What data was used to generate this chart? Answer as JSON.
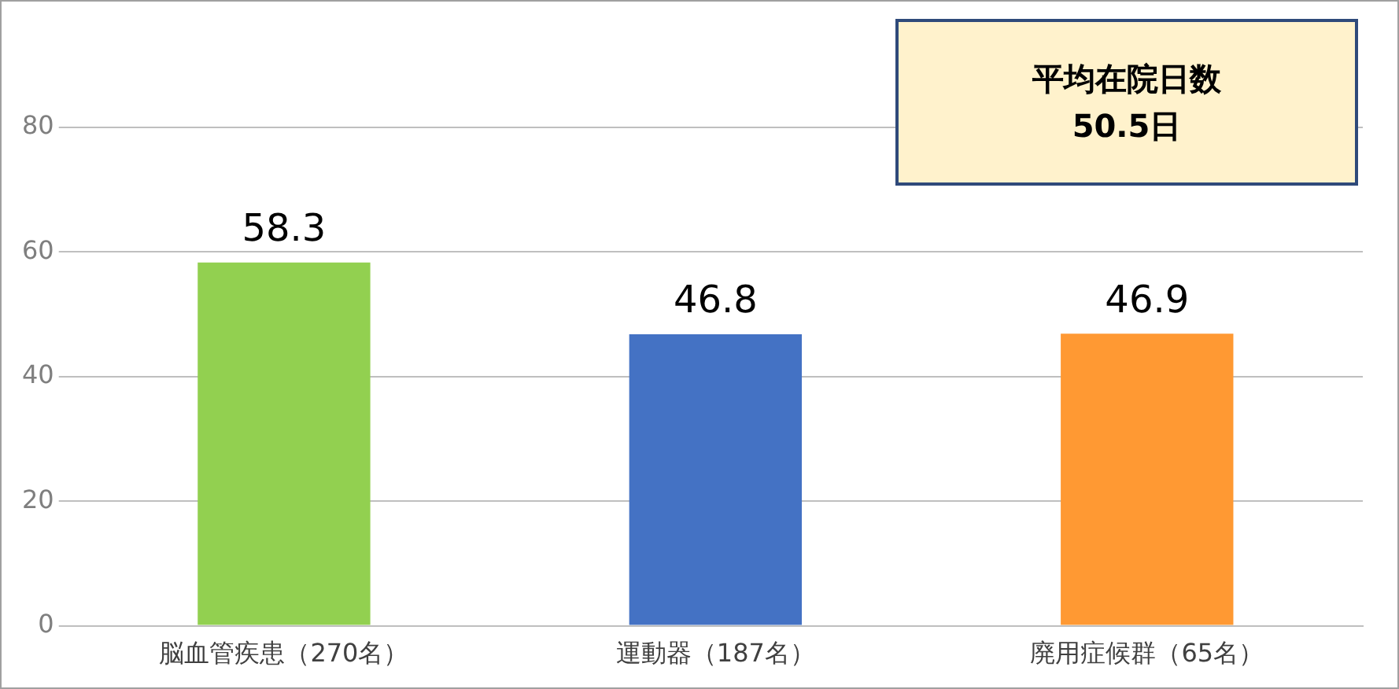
{
  "chart_data": {
    "type": "bar",
    "categories": [
      "脳血管疾患（270名）",
      "運動器（187名）",
      "廃用症候群（65名）"
    ],
    "values": [
      58.3,
      46.8,
      46.9
    ],
    "colors": [
      "#92d050",
      "#4472c4",
      "#ff9933"
    ],
    "ylim": [
      0,
      80
    ],
    "yticks": [
      0,
      20,
      40,
      60,
      80
    ],
    "grid": "y",
    "legend": false,
    "data_labels": true,
    "annotations": [
      "平均在院日数\n50.5日"
    ]
  }
}
